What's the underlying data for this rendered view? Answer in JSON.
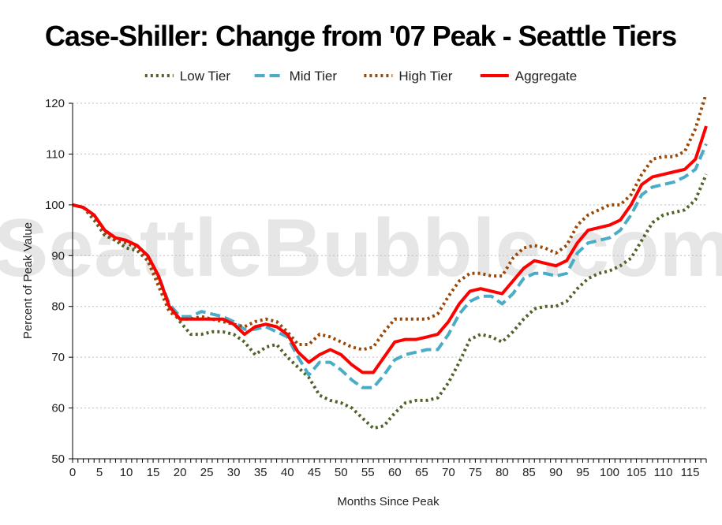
{
  "watermark": "SeattleBubble.com",
  "chart_data": {
    "type": "line",
    "title": "Case-Shiller: Change from '07 Peak - Seattle Tiers",
    "xlabel": "Months Since Peak",
    "ylabel": "Percent of Peak Value",
    "xlim": [
      0,
      118
    ],
    "ylim": [
      50,
      120
    ],
    "xticks": [
      0,
      5,
      10,
      15,
      20,
      25,
      30,
      35,
      40,
      45,
      50,
      55,
      60,
      65,
      70,
      75,
      80,
      85,
      90,
      95,
      100,
      105,
      110,
      115
    ],
    "yticks": [
      50,
      60,
      70,
      80,
      90,
      100,
      110,
      120
    ],
    "grid": "horizontal dotted",
    "legend": "top-center",
    "series": [
      {
        "name": "Low Tier",
        "color": "#4f6228",
        "style": "dotted",
        "points": [
          [
            0,
            100
          ],
          [
            2,
            99.5
          ],
          [
            4,
            97
          ],
          [
            6,
            94
          ],
          [
            8,
            93
          ],
          [
            10,
            91.5
          ],
          [
            12,
            91
          ],
          [
            14,
            89
          ],
          [
            16,
            85
          ],
          [
            18,
            80
          ],
          [
            20,
            77
          ],
          [
            22,
            74.5
          ],
          [
            24,
            74.5
          ],
          [
            26,
            75
          ],
          [
            28,
            75
          ],
          [
            30,
            74.5
          ],
          [
            32,
            73
          ],
          [
            34,
            70.5
          ],
          [
            36,
            72
          ],
          [
            38,
            72.5
          ],
          [
            40,
            70
          ],
          [
            42,
            68
          ],
          [
            44,
            66
          ],
          [
            46,
            62.5
          ],
          [
            48,
            61.5
          ],
          [
            50,
            61
          ],
          [
            52,
            60
          ],
          [
            54,
            58
          ],
          [
            56,
            56
          ],
          [
            58,
            56.5
          ],
          [
            60,
            59
          ],
          [
            62,
            61
          ],
          [
            64,
            61.5
          ],
          [
            66,
            61.5
          ],
          [
            68,
            62
          ],
          [
            70,
            65
          ],
          [
            72,
            69
          ],
          [
            74,
            73.5
          ],
          [
            76,
            74.5
          ],
          [
            78,
            74
          ],
          [
            80,
            73
          ],
          [
            82,
            75
          ],
          [
            84,
            77.5
          ],
          [
            86,
            79.5
          ],
          [
            88,
            80
          ],
          [
            90,
            80
          ],
          [
            92,
            81
          ],
          [
            94,
            83.5
          ],
          [
            96,
            85.5
          ],
          [
            98,
            86.5
          ],
          [
            100,
            87
          ],
          [
            102,
            88
          ],
          [
            104,
            89.5
          ],
          [
            106,
            93
          ],
          [
            108,
            96.5
          ],
          [
            110,
            98
          ],
          [
            112,
            98.5
          ],
          [
            114,
            99
          ],
          [
            116,
            101
          ],
          [
            118,
            106
          ]
        ]
      },
      {
        "name": "Mid Tier",
        "color": "#4bacc6",
        "style": "dashed",
        "points": [
          [
            0,
            100
          ],
          [
            2,
            99.5
          ],
          [
            4,
            98
          ],
          [
            6,
            95
          ],
          [
            8,
            93.5
          ],
          [
            10,
            93
          ],
          [
            12,
            92
          ],
          [
            14,
            90
          ],
          [
            16,
            86
          ],
          [
            18,
            80.5
          ],
          [
            20,
            78
          ],
          [
            22,
            78
          ],
          [
            24,
            79
          ],
          [
            26,
            78.5
          ],
          [
            28,
            78
          ],
          [
            30,
            77
          ],
          [
            32,
            75.5
          ],
          [
            34,
            75.5
          ],
          [
            36,
            76
          ],
          [
            38,
            75
          ],
          [
            40,
            74
          ],
          [
            42,
            70
          ],
          [
            44,
            66.5
          ],
          [
            46,
            69
          ],
          [
            48,
            69
          ],
          [
            50,
            67.5
          ],
          [
            52,
            65.5
          ],
          [
            54,
            64
          ],
          [
            56,
            64
          ],
          [
            58,
            66.5
          ],
          [
            60,
            69.5
          ],
          [
            62,
            70.5
          ],
          [
            64,
            71
          ],
          [
            66,
            71.5
          ],
          [
            68,
            71.5
          ],
          [
            70,
            74.5
          ],
          [
            72,
            78.5
          ],
          [
            74,
            81
          ],
          [
            76,
            82
          ],
          [
            78,
            82
          ],
          [
            80,
            80.5
          ],
          [
            82,
            82.5
          ],
          [
            84,
            85.5
          ],
          [
            86,
            86.5
          ],
          [
            88,
            86.5
          ],
          [
            90,
            86
          ],
          [
            92,
            86.5
          ],
          [
            94,
            90.5
          ],
          [
            96,
            92.5
          ],
          [
            98,
            93
          ],
          [
            100,
            93.5
          ],
          [
            102,
            95
          ],
          [
            104,
            98
          ],
          [
            106,
            102
          ],
          [
            108,
            103.5
          ],
          [
            110,
            104
          ],
          [
            112,
            104.5
          ],
          [
            114,
            105.5
          ],
          [
            116,
            107
          ],
          [
            118,
            112
          ]
        ]
      },
      {
        "name": "High Tier",
        "color": "#984807",
        "style": "dotted",
        "points": [
          [
            0,
            100
          ],
          [
            2,
            99.5
          ],
          [
            4,
            97.5
          ],
          [
            6,
            94.5
          ],
          [
            8,
            93
          ],
          [
            10,
            92.5
          ],
          [
            12,
            91.5
          ],
          [
            14,
            89
          ],
          [
            16,
            84
          ],
          [
            18,
            79
          ],
          [
            20,
            77.5
          ],
          [
            22,
            77.5
          ],
          [
            24,
            78
          ],
          [
            26,
            77.5
          ],
          [
            28,
            77
          ],
          [
            30,
            76.5
          ],
          [
            32,
            76
          ],
          [
            34,
            77
          ],
          [
            36,
            77.5
          ],
          [
            38,
            77
          ],
          [
            40,
            75
          ],
          [
            42,
            72.5
          ],
          [
            44,
            72.5
          ],
          [
            46,
            74.5
          ],
          [
            48,
            74
          ],
          [
            50,
            73
          ],
          [
            52,
            72
          ],
          [
            54,
            71.5
          ],
          [
            56,
            72
          ],
          [
            58,
            75
          ],
          [
            60,
            77.5
          ],
          [
            62,
            77.5
          ],
          [
            64,
            77.5
          ],
          [
            66,
            77.5
          ],
          [
            68,
            78.5
          ],
          [
            70,
            82
          ],
          [
            72,
            85
          ],
          [
            74,
            86.5
          ],
          [
            76,
            86.5
          ],
          [
            78,
            86
          ],
          [
            80,
            86
          ],
          [
            82,
            89.5
          ],
          [
            84,
            91.5
          ],
          [
            86,
            92
          ],
          [
            88,
            91.5
          ],
          [
            90,
            90.5
          ],
          [
            92,
            92
          ],
          [
            94,
            96
          ],
          [
            96,
            98
          ],
          [
            98,
            99
          ],
          [
            100,
            100
          ],
          [
            102,
            100
          ],
          [
            104,
            102
          ],
          [
            106,
            106
          ],
          [
            108,
            109
          ],
          [
            110,
            109.5
          ],
          [
            112,
            109.5
          ],
          [
            114,
            110.5
          ],
          [
            116,
            115
          ],
          [
            118,
            122
          ]
        ]
      },
      {
        "name": "Aggregate",
        "color": "#ff0000",
        "style": "solid",
        "points": [
          [
            0,
            100
          ],
          [
            2,
            99.5
          ],
          [
            4,
            98
          ],
          [
            6,
            95
          ],
          [
            8,
            93.5
          ],
          [
            10,
            93
          ],
          [
            12,
            92
          ],
          [
            14,
            90
          ],
          [
            16,
            86
          ],
          [
            18,
            80
          ],
          [
            20,
            77.5
          ],
          [
            22,
            77.5
          ],
          [
            24,
            77.5
          ],
          [
            26,
            77.5
          ],
          [
            28,
            77.5
          ],
          [
            30,
            76.5
          ],
          [
            32,
            74.5
          ],
          [
            34,
            76
          ],
          [
            36,
            76.5
          ],
          [
            38,
            76
          ],
          [
            40,
            74.5
          ],
          [
            42,
            71
          ],
          [
            44,
            69
          ],
          [
            46,
            70.5
          ],
          [
            48,
            71.5
          ],
          [
            50,
            70.5
          ],
          [
            52,
            68.5
          ],
          [
            54,
            67
          ],
          [
            56,
            67
          ],
          [
            58,
            70
          ],
          [
            60,
            73
          ],
          [
            62,
            73.5
          ],
          [
            64,
            73.5
          ],
          [
            66,
            74
          ],
          [
            68,
            74.5
          ],
          [
            70,
            77
          ],
          [
            72,
            80.5
          ],
          [
            74,
            83
          ],
          [
            76,
            83.5
          ],
          [
            78,
            83
          ],
          [
            80,
            82.5
          ],
          [
            82,
            85
          ],
          [
            84,
            87.5
          ],
          [
            86,
            89
          ],
          [
            88,
            88.5
          ],
          [
            90,
            88
          ],
          [
            92,
            89
          ],
          [
            94,
            92.5
          ],
          [
            96,
            95
          ],
          [
            98,
            95.5
          ],
          [
            100,
            96
          ],
          [
            102,
            97
          ],
          [
            104,
            100
          ],
          [
            106,
            104
          ],
          [
            108,
            105.5
          ],
          [
            110,
            106
          ],
          [
            112,
            106.5
          ],
          [
            114,
            107
          ],
          [
            116,
            109
          ],
          [
            118,
            115.5
          ]
        ]
      }
    ]
  }
}
